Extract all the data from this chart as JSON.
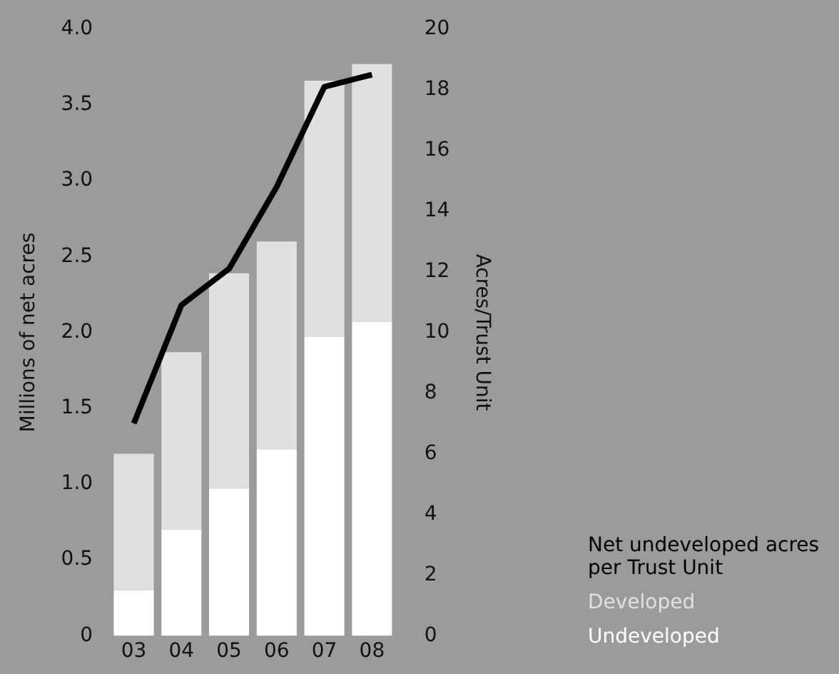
{
  "chart_data": {
    "type": "bar",
    "stacked": true,
    "categories": [
      "03",
      "04",
      "05",
      "06",
      "07",
      "08"
    ],
    "ylabel": "Millions of net acres",
    "y2label": "Acres/Trust Unit",
    "ylim": [
      0,
      4
    ],
    "yticks": [
      0,
      {
        "value": 0.5,
        "label": "0.5"
      },
      {
        "value": 1,
        "label": "1.0"
      },
      {
        "value": 1.5,
        "label": "1.5"
      },
      {
        "value": 2,
        "label": "2.0"
      },
      {
        "value": 2.5,
        "label": "2.5"
      },
      {
        "value": 3,
        "label": "3.0"
      },
      {
        "value": 3.5,
        "label": "3.5"
      },
      {
        "value": 4,
        "label": "4.0"
      }
    ],
    "y2lim": [
      0,
      20
    ],
    "y2ticks": [
      0,
      2,
      4,
      6,
      8,
      10,
      12,
      14,
      16,
      18,
      20
    ],
    "series": [
      {
        "name": "Undeveloped",
        "color": "#ffffff",
        "values": [
          0.3,
          0.7,
          0.97,
          1.23,
          1.97,
          2.07
        ]
      },
      {
        "name": "Developed",
        "color": "#e0e0e0",
        "values": [
          0.9,
          1.17,
          1.42,
          1.37,
          1.69,
          1.7
        ]
      },
      {
        "name": "Net undeveloped acres per Trust Unit",
        "type": "line",
        "axis": "y2",
        "color": "#000000",
        "marker": "none",
        "line_style": "solid",
        "values": [
          7.0,
          10.9,
          12.1,
          14.8,
          18.1,
          18.5
        ]
      }
    ],
    "grid": false,
    "legend": "bottom right"
  }
}
